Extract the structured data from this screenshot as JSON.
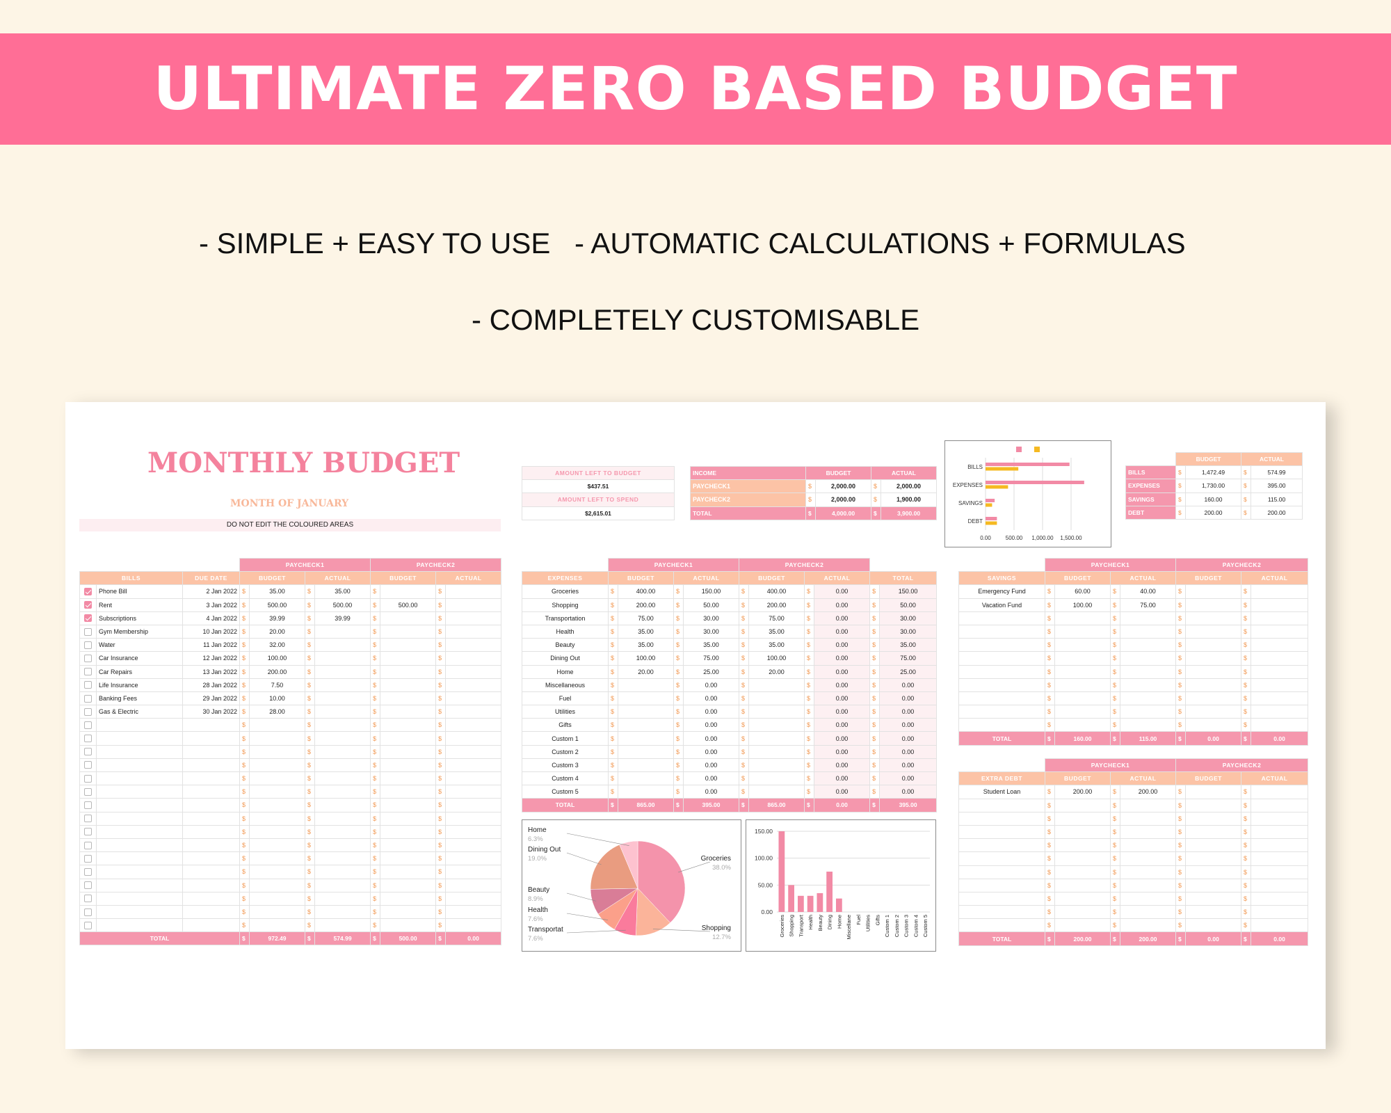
{
  "banner": {
    "title": "ULTIMATE ZERO BASED BUDGET",
    "color": "#ff6e96"
  },
  "features": {
    "f1": "- SIMPLE + EASY TO USE",
    "f2": "- AUTOMATIC CALCULATIONS + FORMULAS",
    "f3": "- COMPLETELY CUSTOMISABLE"
  },
  "sheet": {
    "title": "MONTHLY BUDGET",
    "month": "MONTH OF JANUARY",
    "warning": "DO NOT EDIT THE COLOURED AREAS"
  },
  "left_box": {
    "to_budget_label": "AMOUNT LEFT TO BUDGET",
    "to_budget_value": "$437.51",
    "to_spend_label": "AMOUNT LEFT TO SPEND",
    "to_spend_value": "$2,615.01"
  },
  "income": {
    "headers": [
      "INCOME",
      "BUDGET",
      "ACTUAL"
    ],
    "rows": [
      {
        "label": "PAYCHECK1",
        "budget": "2,000.00",
        "actual": "2,000.00"
      },
      {
        "label": "PAYCHECK2",
        "budget": "2,000.00",
        "actual": "1,900.00"
      }
    ],
    "total": {
      "label": "TOTAL",
      "budget": "4,000.00",
      "actual": "3,900.00"
    }
  },
  "summary": {
    "headers": [
      "BUDGET",
      "ACTUAL"
    ],
    "rows": [
      {
        "label": "BILLS",
        "budget": "1,472.49",
        "actual": "574.99"
      },
      {
        "label": "EXPENSES",
        "budget": "1,730.00",
        "actual": "395.00"
      },
      {
        "label": "SAVINGS",
        "budget": "160.00",
        "actual": "115.00"
      },
      {
        "label": "DEBT",
        "budget": "200.00",
        "actual": "200.00"
      }
    ]
  },
  "summary_chart": {
    "type": "bar",
    "orientation": "horizontal",
    "categories": [
      "BILLS",
      "EXPENSES",
      "SAVINGS",
      "DEBT"
    ],
    "series": [
      {
        "values": [
          1472.49,
          1730,
          160,
          200
        ],
        "color": "#f28aa5"
      },
      {
        "values": [
          574.99,
          395,
          115,
          200
        ],
        "color": "#f5b921"
      }
    ],
    "xticks": [
      "0.00",
      "500.00",
      "1,000.00",
      "1,500.00"
    ],
    "xlim": [
      0,
      2000
    ],
    "legend": "top",
    "grid": true
  },
  "dollar": "$",
  "paycheck_labels": [
    "PAYCHECK1",
    "PAYCHECK2"
  ],
  "bills": {
    "headers": [
      "BILLS",
      "DUE DATE",
      "BUDGET",
      "ACTUAL",
      "BUDGET",
      "ACTUAL"
    ],
    "rows": [
      {
        "name": "Phone Bill",
        "due": "2 Jan 2022",
        "b1": "35.00",
        "a1": "35.00",
        "b2": "",
        "a2": "",
        "checked": true
      },
      {
        "name": "Rent",
        "due": "3 Jan 2022",
        "b1": "500.00",
        "a1": "500.00",
        "b2": "500.00",
        "a2": "",
        "checked": true
      },
      {
        "name": "Subscriptions",
        "due": "4 Jan 2022",
        "b1": "39.99",
        "a1": "39.99",
        "b2": "",
        "a2": "",
        "checked": true
      },
      {
        "name": "Gym Membership",
        "due": "10 Jan 2022",
        "b1": "20.00",
        "a1": "",
        "b2": "",
        "a2": "",
        "checked": false
      },
      {
        "name": "Water",
        "due": "11 Jan 2022",
        "b1": "32.00",
        "a1": "",
        "b2": "",
        "a2": "",
        "checked": false
      },
      {
        "name": "Car Insurance",
        "due": "12 Jan 2022",
        "b1": "100.00",
        "a1": "",
        "b2": "",
        "a2": "",
        "checked": false
      },
      {
        "name": "Car Repairs",
        "due": "13 Jan 2022",
        "b1": "200.00",
        "a1": "",
        "b2": "",
        "a2": "",
        "checked": false
      },
      {
        "name": "Life Insurance",
        "due": "28 Jan 2022",
        "b1": "7.50",
        "a1": "",
        "b2": "",
        "a2": "",
        "checked": false
      },
      {
        "name": "Banking Fees",
        "due": "29 Jan 2022",
        "b1": "10.00",
        "a1": "",
        "b2": "",
        "a2": "",
        "checked": false
      },
      {
        "name": "Gas & Electric",
        "due": "30 Jan 2022",
        "b1": "28.00",
        "a1": "",
        "b2": "",
        "a2": "",
        "checked": false
      }
    ],
    "empty_rows": 16,
    "total": {
      "label": "TOTAL",
      "b1": "972.49",
      "a1": "574.99",
      "b2": "500.00",
      "a2": "0.00"
    }
  },
  "expenses": {
    "headers": [
      "EXPENSES",
      "BUDGET",
      "ACTUAL",
      "BUDGET",
      "ACTUAL",
      "TOTAL"
    ],
    "rows": [
      {
        "name": "Groceries",
        "b1": "400.00",
        "a1": "150.00",
        "b2": "400.00",
        "a2": "0.00",
        "t": "150.00"
      },
      {
        "name": "Shopping",
        "b1": "200.00",
        "a1": "50.00",
        "b2": "200.00",
        "a2": "0.00",
        "t": "50.00"
      },
      {
        "name": "Transportation",
        "b1": "75.00",
        "a1": "30.00",
        "b2": "75.00",
        "a2": "0.00",
        "t": "30.00"
      },
      {
        "name": "Health",
        "b1": "35.00",
        "a1": "30.00",
        "b2": "35.00",
        "a2": "0.00",
        "t": "30.00"
      },
      {
        "name": "Beauty",
        "b1": "35.00",
        "a1": "35.00",
        "b2": "35.00",
        "a2": "0.00",
        "t": "35.00"
      },
      {
        "name": "Dining Out",
        "b1": "100.00",
        "a1": "75.00",
        "b2": "100.00",
        "a2": "0.00",
        "t": "75.00"
      },
      {
        "name": "Home",
        "b1": "20.00",
        "a1": "25.00",
        "b2": "20.00",
        "a2": "0.00",
        "t": "25.00"
      },
      {
        "name": "Miscellaneous",
        "b1": "",
        "a1": "0.00",
        "b2": "",
        "a2": "0.00",
        "t": "0.00"
      },
      {
        "name": "Fuel",
        "b1": "",
        "a1": "0.00",
        "b2": "",
        "a2": "0.00",
        "t": "0.00"
      },
      {
        "name": "Utilities",
        "b1": "",
        "a1": "0.00",
        "b2": "",
        "a2": "0.00",
        "t": "0.00"
      },
      {
        "name": "Gifts",
        "b1": "",
        "a1": "0.00",
        "b2": "",
        "a2": "0.00",
        "t": "0.00"
      },
      {
        "name": "Custom 1",
        "b1": "",
        "a1": "0.00",
        "b2": "",
        "a2": "0.00",
        "t": "0.00"
      },
      {
        "name": "Custom 2",
        "b1": "",
        "a1": "0.00",
        "b2": "",
        "a2": "0.00",
        "t": "0.00"
      },
      {
        "name": "Custom 3",
        "b1": "",
        "a1": "0.00",
        "b2": "",
        "a2": "0.00",
        "t": "0.00"
      },
      {
        "name": "Custom 4",
        "b1": "",
        "a1": "0.00",
        "b2": "",
        "a2": "0.00",
        "t": "0.00"
      },
      {
        "name": "Custom 5",
        "b1": "",
        "a1": "0.00",
        "b2": "",
        "a2": "0.00",
        "t": "0.00"
      }
    ],
    "total": {
      "label": "TOTAL",
      "b1": "865.00",
      "a1": "395.00",
      "b2": "865.00",
      "a2": "0.00",
      "t": "395.00"
    }
  },
  "savings": {
    "headers": [
      "SAVINGS",
      "BUDGET",
      "ACTUAL",
      "BUDGET",
      "ACTUAL"
    ],
    "rows": [
      {
        "name": "Emergency Fund",
        "b1": "60.00",
        "a1": "40.00",
        "b2": "",
        "a2": ""
      },
      {
        "name": "Vacation Fund",
        "b1": "100.00",
        "a1": "75.00",
        "b2": "",
        "a2": ""
      }
    ],
    "empty_rows": 9,
    "total": {
      "label": "TOTAL",
      "b1": "160.00",
      "a1": "115.00",
      "b2": "0.00",
      "a2": "0.00"
    }
  },
  "debt": {
    "headers": [
      "EXTRA DEBT",
      "BUDGET",
      "ACTUAL",
      "BUDGET",
      "ACTUAL"
    ],
    "rows": [
      {
        "name": "Student Loan",
        "b1": "200.00",
        "a1": "200.00",
        "b2": "",
        "a2": ""
      }
    ],
    "empty_rows": 10,
    "total": {
      "label": "TOTAL",
      "b1": "200.00",
      "a1": "200.00",
      "b2": "0.00",
      "a2": "0.00"
    }
  },
  "chart_data": [
    {
      "type": "pie",
      "slices": [
        {
          "label": "Groceries",
          "pct": "38.0%",
          "value": 150,
          "color": "#f493ab"
        },
        {
          "label": "Shopping",
          "pct": "12.7%",
          "value": 50,
          "color": "#fbb49a"
        },
        {
          "label": "Transportat",
          "pct": "7.6%",
          "value": 30,
          "color": "#fa7b9c"
        },
        {
          "label": "Health",
          "pct": "7.6%",
          "value": 30,
          "color": "#fba08a"
        },
        {
          "label": "Beauty",
          "pct": "8.9%",
          "value": 35,
          "color": "#d97d97"
        },
        {
          "label": "Dining Out",
          "pct": "19.0%",
          "value": 75,
          "color": "#e99c80"
        },
        {
          "label": "Home",
          "pct": "6.3%",
          "value": 25,
          "color": "#fdc2cf"
        }
      ]
    },
    {
      "type": "bar",
      "categories": [
        "Groceries",
        "Shopping",
        "Transport",
        "Health",
        "Beauty",
        "Dining",
        "Home",
        "Miscellane",
        "Fuel",
        "Utilities",
        "Gifts",
        "Custom 1",
        "Custom 2",
        "Custom 3",
        "Custom 4",
        "Custom 5"
      ],
      "values": [
        150,
        50,
        30,
        30,
        35,
        75,
        25,
        0,
        0,
        0,
        0,
        0,
        0,
        0,
        0,
        0
      ],
      "yticks": [
        "0.00",
        "50.00",
        "100.00",
        "150.00"
      ],
      "ylim": [
        0,
        150
      ],
      "color": "#f28aa5",
      "grid": true
    }
  ]
}
